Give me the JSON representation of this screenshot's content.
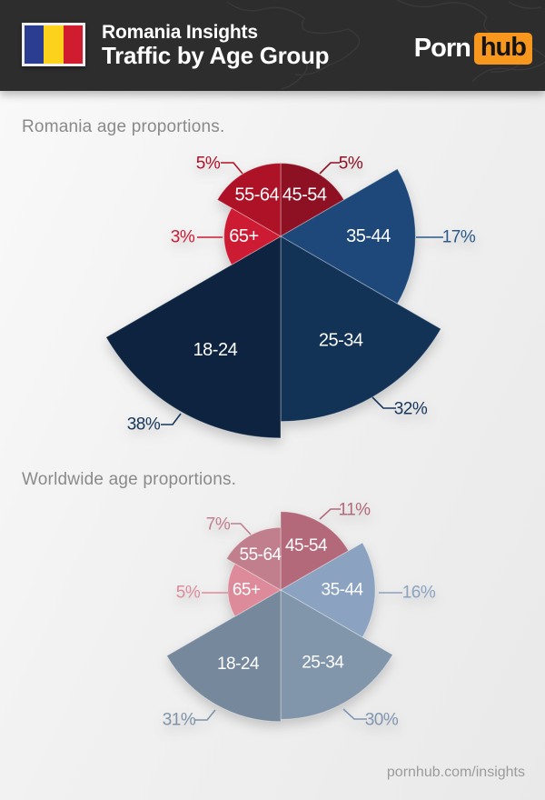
{
  "header": {
    "title_line1": "Romania Insights",
    "title_line2": "Traffic by Age Group",
    "logo_part1": "Porn",
    "logo_part2": "hub",
    "logo_accent_color": "#f7971d",
    "background_color": "#2d2d2d",
    "flag": {
      "name": "romania-flag",
      "stripe_colors": [
        "#2b3d90",
        "#fcd21c",
        "#d01c2f"
      ]
    }
  },
  "chart_data": [
    {
      "type": "polar-area",
      "title": "Romania age proportions.",
      "unit": "percent",
      "slice_angle_deg": 60,
      "order": "clockwise-from-top",
      "radius_scale": "sqrt",
      "slices": [
        {
          "label": "45-54",
          "value": 5,
          "pct": "5%",
          "color": "#8e1023",
          "pct_color": "#8e1023"
        },
        {
          "label": "35-44",
          "value": 17,
          "pct": "17%",
          "color": "#1d4879",
          "pct_color": "#2a598c"
        },
        {
          "label": "25-34",
          "value": 32,
          "pct": "32%",
          "color": "#123256",
          "pct_color": "#16365c"
        },
        {
          "label": "18-24",
          "value": 38,
          "pct": "38%",
          "color": "#0d2340",
          "pct_color": "#16365c"
        },
        {
          "label": "65+",
          "value": 3,
          "pct": "3%",
          "color": "#ce1b34",
          "pct_color": "#ce1b34"
        },
        {
          "label": "55-64",
          "value": 5,
          "pct": "5%",
          "color": "#ae1227",
          "pct_color": "#b01228"
        }
      ]
    },
    {
      "type": "polar-area",
      "title": "Worldwide age proportions.",
      "unit": "percent",
      "slice_angle_deg": 60,
      "order": "clockwise-from-top",
      "radius_scale": "sqrt",
      "slices": [
        {
          "label": "45-54",
          "value": 11,
          "pct": "11%",
          "color": "#b4697a",
          "pct_color": "#b4697a"
        },
        {
          "label": "35-44",
          "value": 16,
          "pct": "16%",
          "color": "#8ba3c0",
          "pct_color": "#8ba3c0"
        },
        {
          "label": "25-34",
          "value": 30,
          "pct": "30%",
          "color": "#8296ab",
          "pct_color": "#8096b0"
        },
        {
          "label": "18-24",
          "value": 31,
          "pct": "31%",
          "color": "#76889c",
          "pct_color": "#7e93a8"
        },
        {
          "label": "65+",
          "value": 5,
          "pct": "5%",
          "color": "#dd8b9a",
          "pct_color": "#dd8b9a"
        },
        {
          "label": "55-64",
          "value": 7,
          "pct": "7%",
          "color": "#c17e8d",
          "pct_color": "#c17e8d"
        }
      ]
    }
  ],
  "footer": {
    "text": "pornhub.com/insights"
  }
}
